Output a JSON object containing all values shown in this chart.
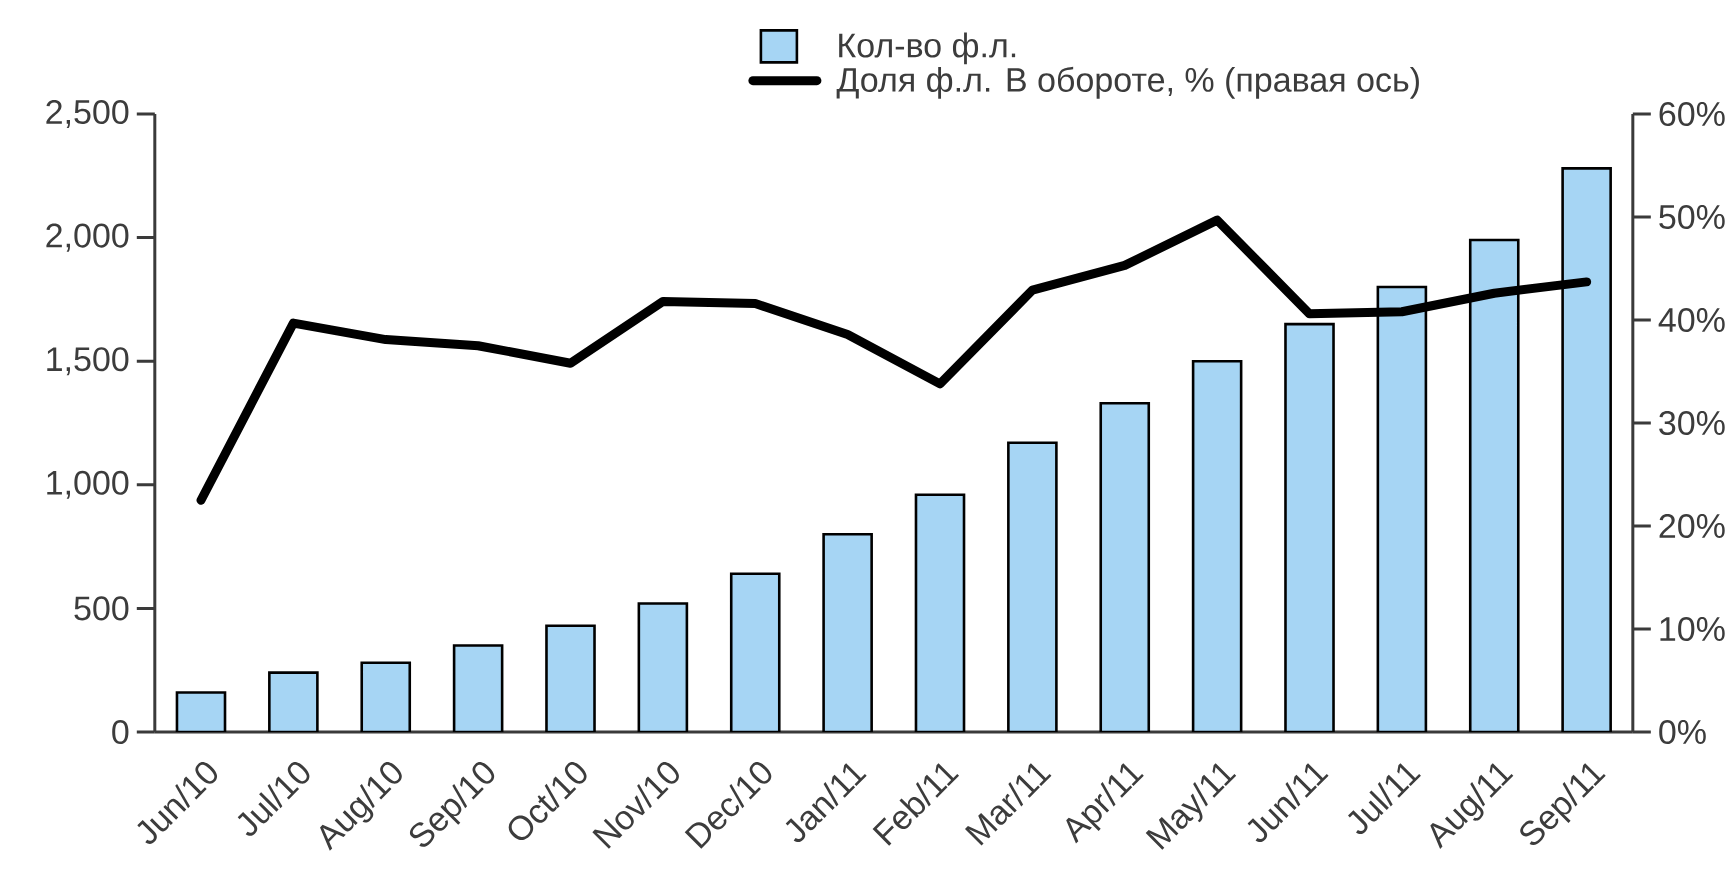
{
  "chart_data": {
    "type": "bar",
    "categories": [
      "Jun/10",
      "Jul/10",
      "Aug/10",
      "Sep/10",
      "Oct/10",
      "Nov/10",
      "Dec/10",
      "Jan/11",
      "Feb/11",
      "Mar/11",
      "Apr/11",
      "May/11",
      "Jun/11",
      "Jul/11",
      "Aug/11",
      "Sep/11"
    ],
    "series": [
      {
        "name": "Кол-во ф.л.",
        "color": "#a6d5f4",
        "values": [
          160,
          240,
          280,
          350,
          430,
          520,
          640,
          800,
          960,
          1170,
          1330,
          1500,
          1650,
          1800,
          1990,
          2280
        ]
      },
      {
        "name": "Доля ф.л. В обороте, % (правая ось)",
        "type": "line",
        "axis": "y2",
        "color": "#000000",
        "values": [
          22.5,
          39.7,
          38.1,
          37.5,
          35.8,
          41.8,
          41.6,
          38.6,
          33.8,
          42.9,
          45.3,
          49.7,
          40.6,
          40.8,
          42.6,
          43.7
        ]
      }
    ],
    "ylim": [
      0,
      2500
    ],
    "yticks": [
      0,
      500,
      {
        "value": 1000,
        "label": "1,000"
      },
      {
        "value": 1500,
        "label": "1,500"
      },
      {
        "value": 2000,
        "label": "2,000"
      },
      {
        "value": 2500,
        "label": "2,500"
      }
    ],
    "y2lim": [
      0,
      60
    ],
    "y2ticks": [
      {
        "value": 0,
        "label": "0%"
      },
      {
        "value": 10,
        "label": "10%"
      },
      {
        "value": 20,
        "label": "20%"
      },
      {
        "value": 30,
        "label": "30%"
      },
      {
        "value": 40,
        "label": "40%"
      },
      {
        "value": 50,
        "label": "50%"
      },
      {
        "value": 60,
        "label": "60%"
      }
    ],
    "legend": "top"
  }
}
